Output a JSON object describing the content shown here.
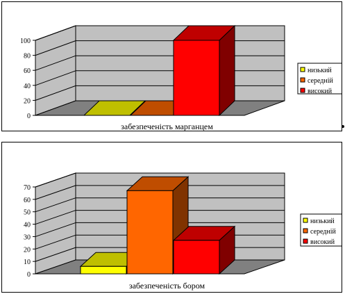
{
  "colors": {
    "low": "#ffff00",
    "medium": "#ff6600",
    "high": "#ff0000",
    "wall": "#c0c0c0",
    "floor": "#808080"
  },
  "chart_data": [
    {
      "type": "bar",
      "xlabel": "забезпеченість марганцем",
      "ylim": [
        0,
        100
      ],
      "yticks": [
        0,
        20,
        40,
        60,
        80,
        100
      ],
      "grid": true,
      "legend_position": "right",
      "series": [
        {
          "name": "низький",
          "value": 0,
          "color": "#ffff00"
        },
        {
          "name": "середній",
          "value": 0,
          "color": "#ff6600"
        },
        {
          "name": "високий",
          "value": 100,
          "color": "#ff0000"
        }
      ]
    },
    {
      "type": "bar",
      "xlabel": "забезпеченість бором",
      "ylim": [
        0,
        70
      ],
      "yticks": [
        0,
        10,
        20,
        30,
        40,
        50,
        60,
        70
      ],
      "grid": true,
      "legend_position": "right",
      "series": [
        {
          "name": "низький",
          "value": 6,
          "color": "#ffff00"
        },
        {
          "name": "середній",
          "value": 67,
          "color": "#ff6600"
        },
        {
          "name": "високий",
          "value": 27,
          "color": "#ff0000"
        }
      ]
    }
  ]
}
